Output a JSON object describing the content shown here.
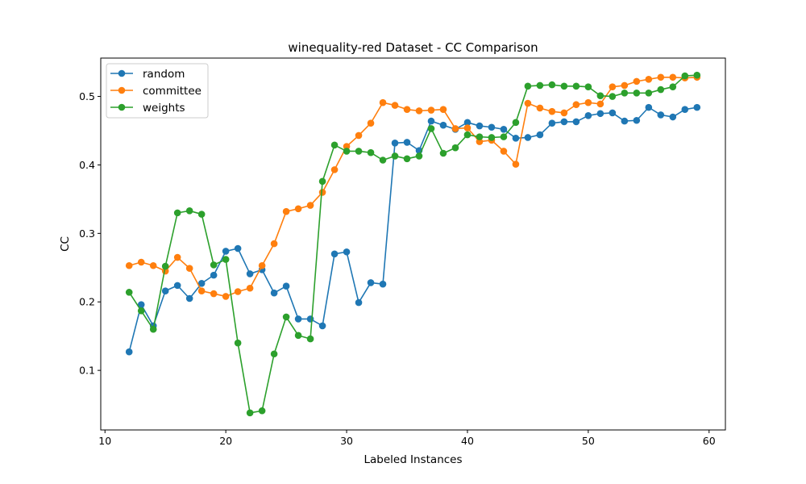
{
  "chart_data": {
    "type": "line",
    "title": "winequality-red Dataset - CC Comparison",
    "xlabel": "Labeled Instances",
    "ylabel": "CC",
    "xlim": [
      9.65,
      61.35
    ],
    "ylim": [
      0.013,
      0.556
    ],
    "xticks": [
      10,
      20,
      30,
      40,
      50,
      60
    ],
    "yticks": [
      0.1,
      0.2,
      0.3,
      0.4,
      0.5
    ],
    "grid": false,
    "legend_position": "top-left",
    "marker": "circle",
    "x": [
      12,
      13,
      14,
      15,
      16,
      17,
      18,
      19,
      20,
      21,
      22,
      23,
      24,
      25,
      26,
      27,
      28,
      29,
      30,
      31,
      32,
      33,
      34,
      35,
      36,
      37,
      38,
      39,
      40,
      41,
      42,
      43,
      44,
      45,
      46,
      47,
      48,
      49,
      50,
      51,
      52,
      53,
      54,
      55,
      56,
      57,
      58,
      59
    ],
    "series": [
      {
        "name": "random",
        "color": "#1f77b4",
        "values": [
          0.127,
          0.196,
          0.165,
          0.216,
          0.224,
          0.205,
          0.227,
          0.239,
          0.274,
          0.278,
          0.241,
          0.247,
          0.213,
          0.223,
          0.175,
          0.175,
          0.165,
          0.27,
          0.273,
          0.199,
          0.228,
          0.226,
          0.432,
          0.433,
          0.421,
          0.464,
          0.458,
          0.452,
          0.462,
          0.457,
          0.455,
          0.452,
          0.439,
          0.44,
          0.444,
          0.461,
          0.463,
          0.463,
          0.472,
          0.475,
          0.476,
          0.464,
          0.465,
          0.484,
          0.473,
          0.47,
          0.481,
          0.484
        ]
      },
      {
        "name": "committee",
        "color": "#ff7f0e",
        "values": [
          0.253,
          0.258,
          0.253,
          0.245,
          0.265,
          0.249,
          0.216,
          0.212,
          0.208,
          0.215,
          0.22,
          0.253,
          0.285,
          0.332,
          0.336,
          0.341,
          0.36,
          0.393,
          0.427,
          0.443,
          0.461,
          0.491,
          0.487,
          0.481,
          0.479,
          0.48,
          0.481,
          0.453,
          0.454,
          0.434,
          0.436,
          0.42,
          0.401,
          0.49,
          0.483,
          0.478,
          0.476,
          0.488,
          0.491,
          0.489,
          0.514,
          0.516,
          0.522,
          0.525,
          0.528,
          0.528,
          0.527,
          0.528
        ]
      },
      {
        "name": "weights",
        "color": "#2ca02c",
        "values": [
          0.214,
          0.187,
          0.16,
          0.252,
          0.33,
          0.333,
          0.328,
          0.254,
          0.262,
          0.14,
          0.038,
          0.041,
          0.124,
          0.178,
          0.151,
          0.146,
          0.376,
          0.429,
          0.42,
          0.42,
          0.418,
          0.407,
          0.413,
          0.409,
          0.413,
          0.453,
          0.417,
          0.425,
          0.444,
          0.441,
          0.44,
          0.441,
          0.462,
          0.515,
          0.516,
          0.517,
          0.515,
          0.515,
          0.514,
          0.501,
          0.5,
          0.505,
          0.505,
          0.505,
          0.51,
          0.514,
          0.53,
          0.531
        ]
      }
    ]
  }
}
